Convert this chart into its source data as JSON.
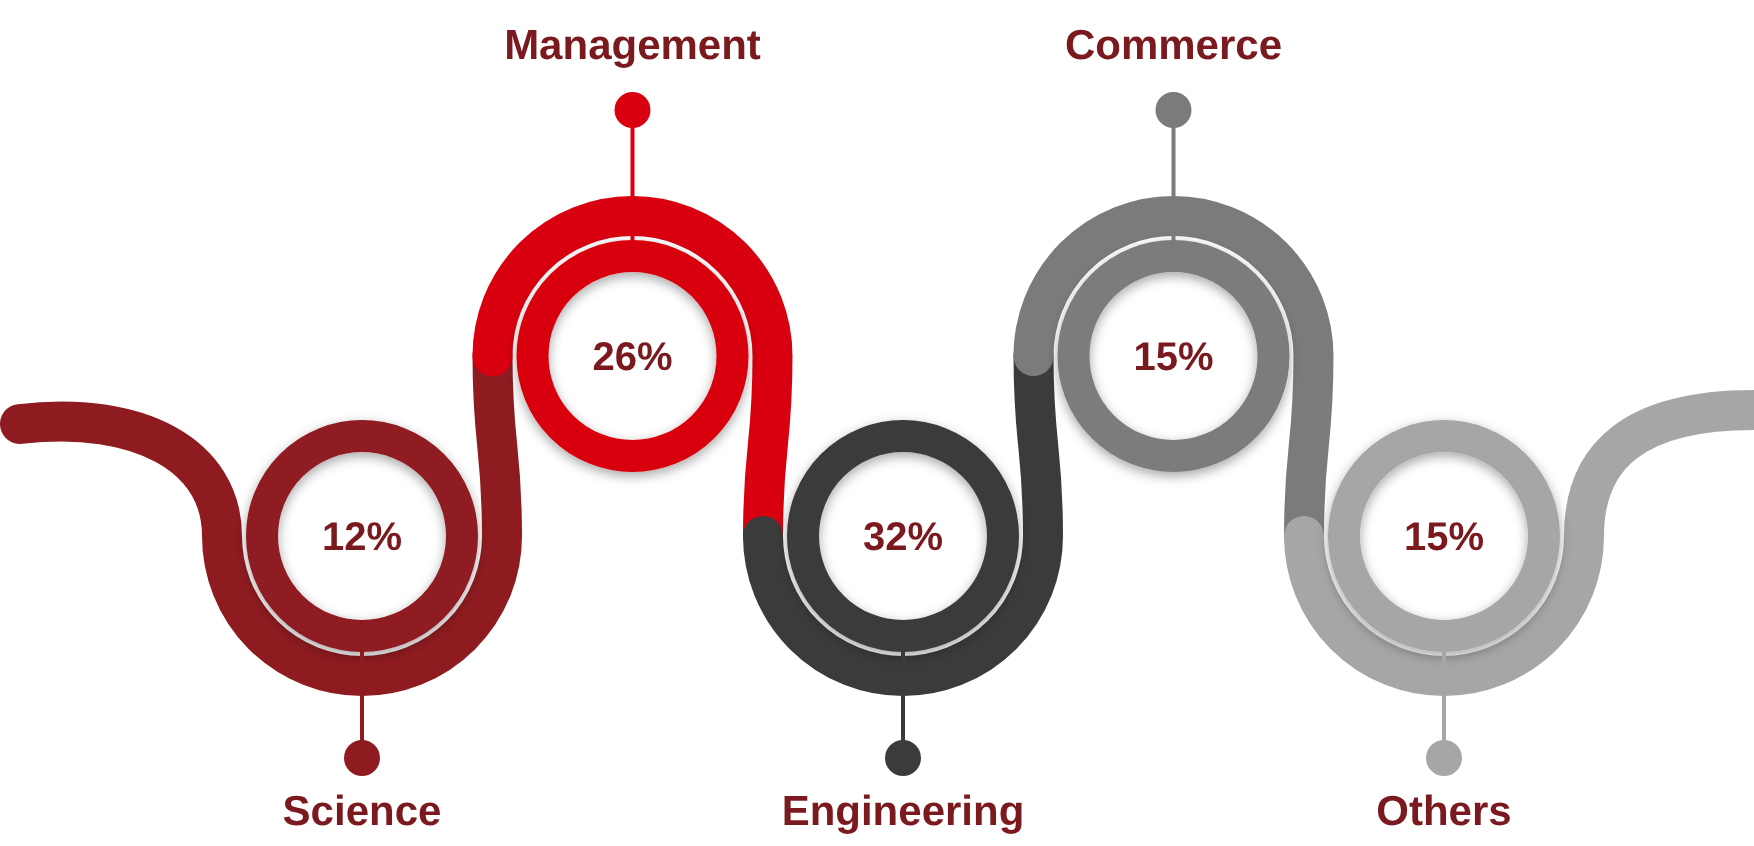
{
  "chart_data": {
    "type": "other",
    "categories": [
      "Science",
      "Management",
      "Engineering",
      "Commerce",
      "Others"
    ],
    "values": [
      12,
      26,
      32,
      15,
      15
    ],
    "value_labels": [
      "12%",
      "26%",
      "32%",
      "15%",
      "15%"
    ],
    "colors": [
      "#8e1b20",
      "#d9000f",
      "#3b3b3b",
      "#7b7b7b",
      "#a6a6a6"
    ]
  }
}
